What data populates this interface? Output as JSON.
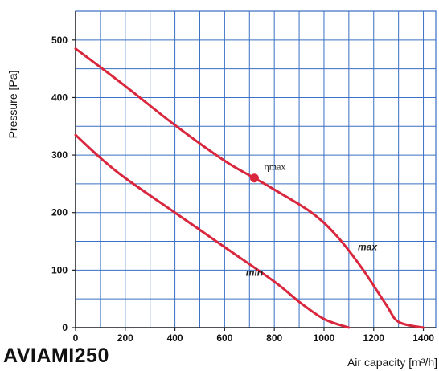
{
  "model_name": "AVIAMI250",
  "colors": {
    "grid": "#3a6fc4",
    "curve": "#d9273e"
  },
  "chart_data": {
    "type": "line",
    "xlabel": "Air capacity [m³/h]",
    "ylabel": "Pressure [Pa]",
    "xlim": [
      0,
      1450
    ],
    "ylim": [
      0,
      550
    ],
    "x_ticks": [
      0,
      200,
      400,
      600,
      800,
      1000,
      1200,
      1400
    ],
    "y_ticks": [
      0,
      100,
      200,
      300,
      400,
      500
    ],
    "grid": true,
    "series": [
      {
        "name": "max",
        "points": [
          [
            0,
            485
          ],
          [
            200,
            420
          ],
          [
            400,
            352
          ],
          [
            600,
            290
          ],
          [
            720,
            260
          ],
          [
            800,
            240
          ],
          [
            950,
            200
          ],
          [
            1050,
            160
          ],
          [
            1150,
            105
          ],
          [
            1250,
            40
          ],
          [
            1300,
            10
          ],
          [
            1400,
            0
          ]
        ]
      },
      {
        "name": "min",
        "points": [
          [
            0,
            335
          ],
          [
            100,
            295
          ],
          [
            200,
            260
          ],
          [
            400,
            200
          ],
          [
            600,
            140
          ],
          [
            800,
            80
          ],
          [
            900,
            45
          ],
          [
            1000,
            15
          ],
          [
            1100,
            0
          ]
        ]
      }
    ],
    "annotations": [
      {
        "text": "ηmax",
        "x": 720,
        "y": 260
      }
    ]
  }
}
